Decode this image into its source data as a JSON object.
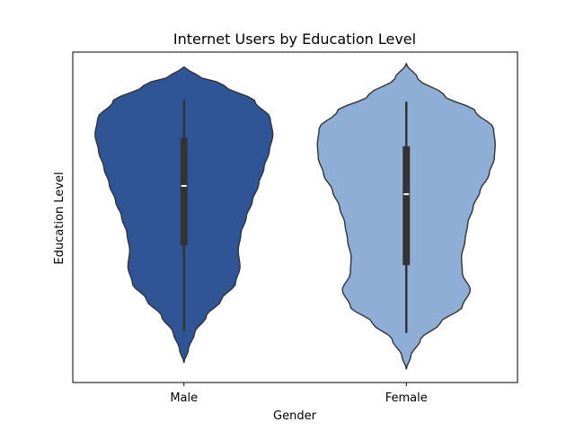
{
  "chart_data": {
    "type": "violin",
    "title": "Internet Users by Education Level",
    "xlabel": "Gender",
    "ylabel": "Education Level",
    "categories": [
      "Male",
      "Female"
    ],
    "y_ticks_shown": false,
    "ylim": [
      0,
      1
    ],
    "grid": false,
    "violins": [
      {
        "category": "Male",
        "color": "#2f5597",
        "outline": "#333333",
        "y_min": 0.06,
        "y_max": 0.955,
        "q1": 0.415,
        "median": 0.595,
        "q3": 0.74,
        "whisker_low": 0.155,
        "whisker_high": 0.855,
        "profile": [
          [
            0.06,
            0.0
          ],
          [
            0.1,
            0.05
          ],
          [
            0.15,
            0.12
          ],
          [
            0.2,
            0.25
          ],
          [
            0.25,
            0.42
          ],
          [
            0.3,
            0.58
          ],
          [
            0.35,
            0.63
          ],
          [
            0.4,
            0.61
          ],
          [
            0.45,
            0.64
          ],
          [
            0.5,
            0.7
          ],
          [
            0.55,
            0.77
          ],
          [
            0.6,
            0.84
          ],
          [
            0.65,
            0.9
          ],
          [
            0.7,
            0.96
          ],
          [
            0.75,
            1.0
          ],
          [
            0.8,
            0.97
          ],
          [
            0.85,
            0.8
          ],
          [
            0.9,
            0.45
          ],
          [
            0.93,
            0.14
          ],
          [
            0.955,
            0.0
          ]
        ]
      },
      {
        "category": "Female",
        "color": "#8faed6",
        "outline": "#333333",
        "y_min": 0.04,
        "y_max": 0.965,
        "q1": 0.355,
        "median": 0.57,
        "q3": 0.715,
        "whisker_low": 0.15,
        "whisker_high": 0.85,
        "profile": [
          [
            0.04,
            0.0
          ],
          [
            0.08,
            0.05
          ],
          [
            0.13,
            0.16
          ],
          [
            0.18,
            0.38
          ],
          [
            0.23,
            0.63
          ],
          [
            0.28,
            0.72
          ],
          [
            0.33,
            0.63
          ],
          [
            0.38,
            0.62
          ],
          [
            0.43,
            0.66
          ],
          [
            0.48,
            0.69
          ],
          [
            0.53,
            0.75
          ],
          [
            0.58,
            0.83
          ],
          [
            0.63,
            0.93
          ],
          [
            0.68,
            0.99
          ],
          [
            0.72,
            1.0
          ],
          [
            0.77,
            0.98
          ],
          [
            0.82,
            0.78
          ],
          [
            0.87,
            0.42
          ],
          [
            0.92,
            0.13
          ],
          [
            0.965,
            0.0
          ]
        ]
      }
    ]
  }
}
